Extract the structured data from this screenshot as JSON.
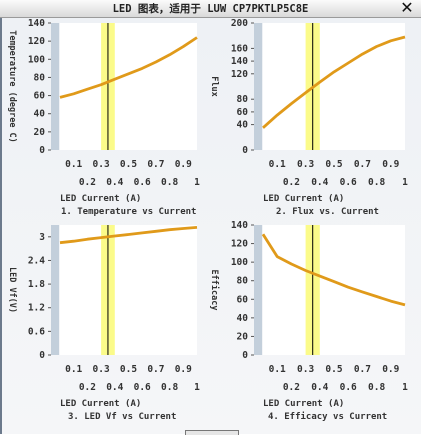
{
  "window": {
    "title": "LED 图表，适用于 LUW CP7PKTLP5C8E",
    "close_glyph": "✕"
  },
  "colors": {
    "curve": "#e09a1a",
    "band": "#fbfb8a",
    "marker": "#000000",
    "axis_bar": "#c3cfdb",
    "plot_bg": "#ffffff"
  },
  "chart_data": [
    {
      "type": "line",
      "title": "1. Temperature vs Current",
      "xlabel": "LED Current (A)",
      "ylabel": "Temperature (degree C)",
      "xlim": [
        0,
        1
      ],
      "ylim": [
        0,
        140
      ],
      "yticks": [
        "0",
        "20",
        "40",
        "60",
        "80",
        "100",
        "120",
        "140"
      ],
      "xticks_top": [
        "0.1",
        "0.3",
        "0.5",
        "0.7",
        "0.9"
      ],
      "xticks_bottom": [
        "0.2",
        "0.4",
        "0.6",
        "0.8",
        "1"
      ],
      "band": [
        0.3,
        0.4
      ],
      "marker_x": 0.35,
      "x": [
        0.0,
        0.1,
        0.2,
        0.3,
        0.4,
        0.5,
        0.6,
        0.7,
        0.8,
        0.9,
        1.0
      ],
      "y": [
        58,
        62,
        67,
        72,
        78,
        84,
        90,
        97,
        105,
        114,
        124
      ]
    },
    {
      "type": "line",
      "title": "2. Flux vs. Current",
      "xlabel": "LED Current (A)",
      "ylabel": "Flux",
      "xlim": [
        0,
        1
      ],
      "ylim": [
        0,
        200
      ],
      "yticks": [
        "0",
        "40",
        "60",
        "80",
        "120",
        "140",
        "160",
        "200"
      ],
      "xticks_top": [
        "0.1",
        "0.3",
        "0.5",
        "0.7",
        "0.9"
      ],
      "xticks_bottom": [
        "0.2",
        "0.4",
        "0.6",
        "0.8",
        "1"
      ],
      "band": [
        0.3,
        0.4
      ],
      "marker_x": 0.35,
      "x": [
        0.0,
        0.1,
        0.2,
        0.3,
        0.4,
        0.5,
        0.6,
        0.7,
        0.8,
        0.9,
        1.0
      ],
      "y": [
        35,
        55,
        73,
        90,
        107,
        123,
        137,
        151,
        163,
        172,
        178
      ]
    },
    {
      "type": "line",
      "title": "3. LED Vf vs Current",
      "xlabel": "LED Current (A)",
      "ylabel": "LED Vf(V)",
      "xlim": [
        0,
        1
      ],
      "ylim": [
        0,
        3.3
      ],
      "yticks": [
        "0",
        "0.6",
        "1.2",
        "1.8",
        "2.4",
        "3"
      ],
      "ytick_values": [
        0,
        0.6,
        1.2,
        1.8,
        2.4,
        3.0
      ],
      "xticks_top": [
        "0.1",
        "0.3",
        "0.5",
        "0.7",
        "0.9"
      ],
      "xticks_bottom": [
        "0.2",
        "0.4",
        "0.6",
        "0.8",
        "1"
      ],
      "band": [
        0.3,
        0.4
      ],
      "marker_x": 0.35,
      "x": [
        0.0,
        0.1,
        0.2,
        0.3,
        0.4,
        0.5,
        0.6,
        0.7,
        0.8,
        0.9,
        1.0
      ],
      "y": [
        2.85,
        2.89,
        2.94,
        2.98,
        3.02,
        3.06,
        3.1,
        3.14,
        3.18,
        3.21,
        3.24
      ]
    },
    {
      "type": "line",
      "title": "4. Efficacy vs Current",
      "xlabel": "LED Current (A)",
      "ylabel": "Efficacy",
      "xlim": [
        0,
        1
      ],
      "ylim": [
        0,
        140
      ],
      "yticks": [
        "0",
        "20",
        "40",
        "60",
        "80",
        "100",
        "120",
        "140"
      ],
      "xticks_top": [
        "0.1",
        "0.3",
        "0.5",
        "0.7",
        "0.9"
      ],
      "xticks_bottom": [
        "0.2",
        "0.4",
        "0.6",
        "0.8",
        "1"
      ],
      "band": [
        0.3,
        0.4
      ],
      "marker_x": 0.35,
      "x": [
        0.0,
        0.1,
        0.2,
        0.3,
        0.4,
        0.5,
        0.6,
        0.7,
        0.8,
        0.9,
        1.0
      ],
      "y": [
        130,
        106,
        98,
        91,
        85,
        79,
        73,
        68,
        63,
        58,
        54
      ]
    }
  ]
}
